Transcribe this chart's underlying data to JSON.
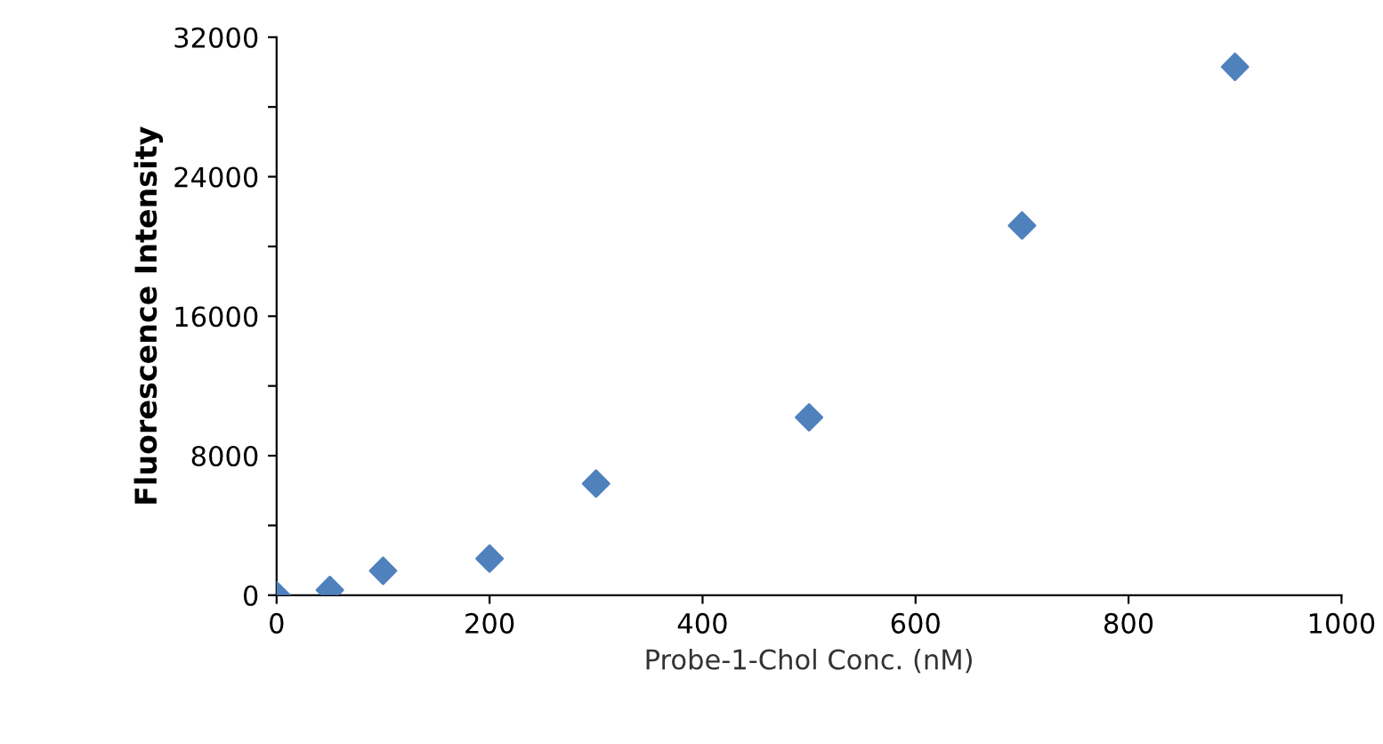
{
  "chart_data": {
    "type": "scatter",
    "xlabel": "Probe-1-Chol Conc. (nM)",
    "ylabel": "Fluorescence Intensity",
    "x": [
      0,
      50,
      100,
      200,
      300,
      500,
      700,
      900
    ],
    "series": [
      {
        "color": "#4f81bd",
        "values": [
          0,
          300,
          1400,
          2100,
          6400,
          10200,
          21200,
          30300
        ]
      }
    ],
    "xlim": [
      0,
      1000
    ],
    "xticks": [
      0,
      200,
      400,
      600,
      800,
      1000
    ],
    "ylim": [
      0,
      32000
    ],
    "yticks": [
      0,
      {
        "value": 4000,
        "label": null
      },
      8000,
      {
        "value": 12000,
        "label": null
      },
      16000,
      {
        "value": 20000,
        "label": null
      },
      24000,
      {
        "value": 28000,
        "label": null
      },
      32000
    ],
    "marker": "diamond",
    "grid": false,
    "legend": false
  }
}
